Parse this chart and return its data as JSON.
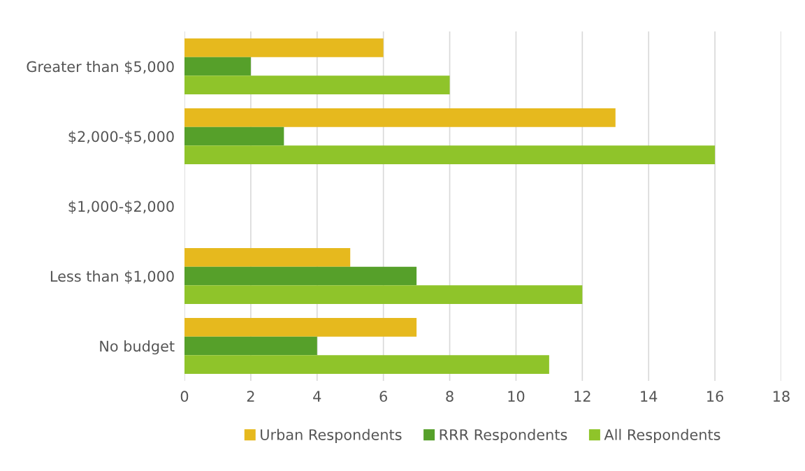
{
  "chart_data": {
    "type": "bar",
    "orientation": "horizontal",
    "categories": [
      "Greater than $5,000",
      "$2,000-$5,000",
      "$1,000-$2,000",
      "Less than $1,000",
      "No budget"
    ],
    "series": [
      {
        "name": "Urban Respondents",
        "color": "#e6b91e",
        "values": [
          6,
          13,
          0,
          5,
          7
        ]
      },
      {
        "name": "RRR Respondents",
        "color": "#56a02a",
        "values": [
          2,
          3,
          0,
          7,
          4
        ]
      },
      {
        "name": "All Respondents",
        "color": "#8fc42a",
        "values": [
          8,
          16,
          0,
          12,
          11
        ]
      }
    ],
    "xlim": [
      0,
      18
    ],
    "xticks": [
      0,
      2,
      4,
      6,
      8,
      10,
      12,
      14,
      16,
      18
    ],
    "grid": "x",
    "legend": "bottom"
  }
}
